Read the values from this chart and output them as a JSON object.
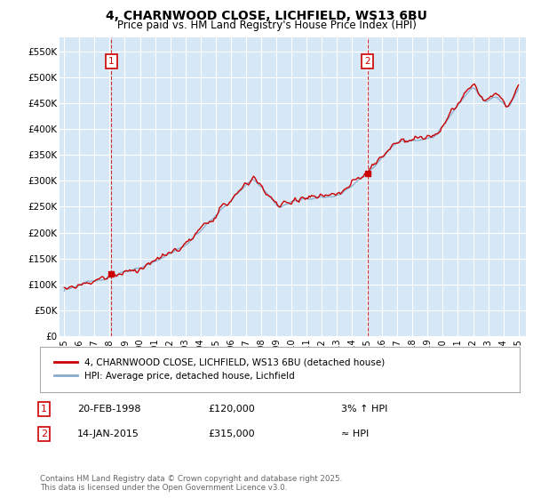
{
  "title": "4, CHARNWOOD CLOSE, LICHFIELD, WS13 6BU",
  "subtitle": "Price paid vs. HM Land Registry's House Price Index (HPI)",
  "legend_line1": "4, CHARNWOOD CLOSE, LICHFIELD, WS13 6BU (detached house)",
  "legend_line2": "HPI: Average price, detached house, Lichfield",
  "annotation1_date": "20-FEB-1998",
  "annotation1_price": "£120,000",
  "annotation1_hpi": "3% ↑ HPI",
  "annotation2_date": "14-JAN-2015",
  "annotation2_price": "£315,000",
  "annotation2_hpi": "≈ HPI",
  "footer": "Contains HM Land Registry data © Crown copyright and database right 2025.\nThis data is licensed under the Open Government Licence v3.0.",
  "red_color": "#cc0000",
  "blue_color": "#88aacc",
  "plot_bg_color": "#d6e8f5",
  "ylim_min": 0,
  "ylim_max": 577000,
  "yticks": [
    0,
    50000,
    100000,
    150000,
    200000,
    250000,
    300000,
    350000,
    400000,
    450000,
    500000,
    550000
  ],
  "ytick_labels": [
    "£0",
    "£50K",
    "£100K",
    "£150K",
    "£200K",
    "£250K",
    "£300K",
    "£350K",
    "£400K",
    "£450K",
    "£500K",
    "£550K"
  ],
  "xlim_min": 1994.7,
  "xlim_max": 2025.5,
  "xticks": [
    1995,
    1996,
    1997,
    1998,
    1999,
    2000,
    2001,
    2002,
    2003,
    2004,
    2005,
    2006,
    2007,
    2008,
    2009,
    2010,
    2011,
    2012,
    2013,
    2014,
    2015,
    2016,
    2017,
    2018,
    2019,
    2020,
    2021,
    2022,
    2023,
    2024,
    2025
  ],
  "sale1_x": 1998.12,
  "sale1_y": 120000,
  "sale2_x": 2015.04,
  "sale2_y": 315000
}
